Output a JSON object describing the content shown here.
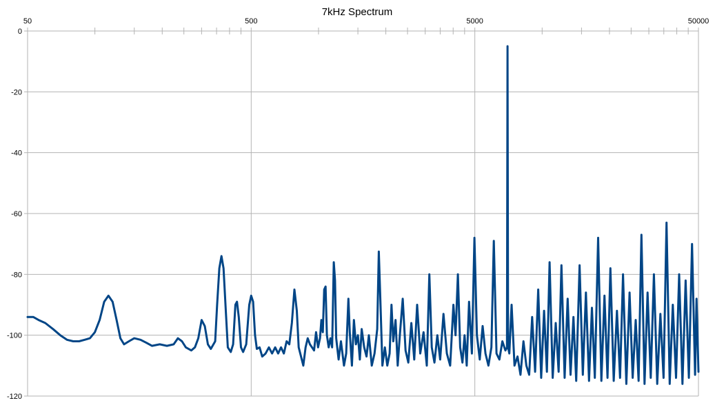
{
  "chart_data": {
    "type": "line",
    "title": "7kHz Spectrum",
    "xlabel": "",
    "ylabel": "",
    "x_scale": "log",
    "xlim": [
      50,
      50000
    ],
    "ylim": [
      -120,
      0
    ],
    "x_tick_labels": [
      "50",
      "500",
      "5000",
      "50000"
    ],
    "y_tick_labels": [
      "0",
      "-20",
      "-40",
      "-60",
      "-80",
      "-100",
      "-120"
    ],
    "grid": true,
    "legend": "none",
    "line_color": "#004586",
    "series": [
      {
        "points": [
          [
            50,
            -94
          ],
          [
            53,
            -94
          ],
          [
            56,
            -95
          ],
          [
            60,
            -96
          ],
          [
            65,
            -98
          ],
          [
            70,
            -100
          ],
          [
            75,
            -101.5
          ],
          [
            80,
            -102
          ],
          [
            85,
            -102
          ],
          [
            90,
            -101.5
          ],
          [
            95,
            -101
          ],
          [
            100,
            -99
          ],
          [
            105,
            -95
          ],
          [
            110,
            -89
          ],
          [
            115,
            -87
          ],
          [
            120,
            -89
          ],
          [
            125,
            -95
          ],
          [
            130,
            -101
          ],
          [
            135,
            -103
          ],
          [
            142,
            -102
          ],
          [
            150,
            -101
          ],
          [
            160,
            -101.5
          ],
          [
            170,
            -102.5
          ],
          [
            180,
            -103.5
          ],
          [
            195,
            -103
          ],
          [
            210,
            -103.5
          ],
          [
            225,
            -103
          ],
          [
            235,
            -101
          ],
          [
            245,
            -102
          ],
          [
            255,
            -104
          ],
          [
            270,
            -105
          ],
          [
            280,
            -104
          ],
          [
            290,
            -101
          ],
          [
            300,
            -95
          ],
          [
            310,
            -97
          ],
          [
            320,
            -103
          ],
          [
            330,
            -104.5
          ],
          [
            345,
            -102
          ],
          [
            352,
            -90
          ],
          [
            360,
            -78
          ],
          [
            368,
            -74
          ],
          [
            376,
            -78
          ],
          [
            385,
            -92
          ],
          [
            393,
            -104
          ],
          [
            405,
            -105.5
          ],
          [
            415,
            -103
          ],
          [
            425,
            -90
          ],
          [
            432,
            -89
          ],
          [
            440,
            -94
          ],
          [
            450,
            -104
          ],
          [
            460,
            -105.5
          ],
          [
            475,
            -103
          ],
          [
            490,
            -90
          ],
          [
            500,
            -87
          ],
          [
            510,
            -89
          ],
          [
            520,
            -100
          ],
          [
            530,
            -104.5
          ],
          [
            545,
            -104
          ],
          [
            560,
            -107
          ],
          [
            580,
            -106
          ],
          [
            600,
            -104
          ],
          [
            620,
            -106
          ],
          [
            640,
            -104
          ],
          [
            660,
            -106
          ],
          [
            680,
            -104
          ],
          [
            700,
            -106
          ],
          [
            720,
            -102
          ],
          [
            740,
            -103
          ],
          [
            760,
            -96
          ],
          [
            780,
            -85
          ],
          [
            800,
            -92
          ],
          [
            815,
            -104
          ],
          [
            835,
            -107
          ],
          [
            855,
            -110
          ],
          [
            875,
            -104
          ],
          [
            895,
            -101
          ],
          [
            915,
            -103
          ],
          [
            935,
            -104
          ],
          [
            955,
            -105
          ],
          [
            975,
            -99
          ],
          [
            995,
            -104
          ],
          [
            1015,
            -101
          ],
          [
            1030,
            -95
          ],
          [
            1045,
            -99
          ],
          [
            1060,
            -85
          ],
          [
            1075,
            -84
          ],
          [
            1090,
            -100
          ],
          [
            1110,
            -104
          ],
          [
            1130,
            -101
          ],
          [
            1150,
            -104
          ],
          [
            1170,
            -76
          ],
          [
            1185,
            -82
          ],
          [
            1200,
            -101
          ],
          [
            1230,
            -108
          ],
          [
            1260,
            -102
          ],
          [
            1280,
            -106
          ],
          [
            1300,
            -110
          ],
          [
            1330,
            -106
          ],
          [
            1360,
            -88
          ],
          [
            1380,
            -99
          ],
          [
            1410,
            -110
          ],
          [
            1440,
            -95
          ],
          [
            1470,
            -103
          ],
          [
            1500,
            -100
          ],
          [
            1530,
            -108
          ],
          [
            1560,
            -98
          ],
          [
            1600,
            -104
          ],
          [
            1640,
            -107
          ],
          [
            1680,
            -100
          ],
          [
            1730,
            -110
          ],
          [
            1780,
            -106
          ],
          [
            1830,
            -98
          ],
          [
            1860,
            -72.5
          ],
          [
            1890,
            -88
          ],
          [
            1930,
            -110
          ],
          [
            1980,
            -104
          ],
          [
            2030,
            -110
          ],
          [
            2080,
            -106
          ],
          [
            2120,
            -90
          ],
          [
            2160,
            -102
          ],
          [
            2210,
            -95
          ],
          [
            2260,
            -110
          ],
          [
            2310,
            -100
          ],
          [
            2380,
            -88
          ],
          [
            2450,
            -105
          ],
          [
            2520,
            -109
          ],
          [
            2600,
            -96
          ],
          [
            2680,
            -108
          ],
          [
            2760,
            -90
          ],
          [
            2850,
            -106
          ],
          [
            2950,
            -99
          ],
          [
            3050,
            -110
          ],
          [
            3130,
            -80
          ],
          [
            3210,
            -104
          ],
          [
            3300,
            -109
          ],
          [
            3400,
            -100
          ],
          [
            3500,
            -108
          ],
          [
            3620,
            -93
          ],
          [
            3750,
            -106
          ],
          [
            3880,
            -110
          ],
          [
            4010,
            -90
          ],
          [
            4100,
            -100
          ],
          [
            4200,
            -80
          ],
          [
            4300,
            -104
          ],
          [
            4400,
            -109
          ],
          [
            4500,
            -100
          ],
          [
            4600,
            -110
          ],
          [
            4710,
            -89
          ],
          [
            4850,
            -106
          ],
          [
            4980,
            -68
          ],
          [
            5110,
            -100
          ],
          [
            5260,
            -108
          ],
          [
            5420,
            -97
          ],
          [
            5580,
            -106
          ],
          [
            5750,
            -110
          ],
          [
            5930,
            -104
          ],
          [
            6080,
            -69
          ],
          [
            6250,
            -106
          ],
          [
            6440,
            -108
          ],
          [
            6640,
            -102
          ],
          [
            6850,
            -105
          ],
          [
            6960,
            -104
          ],
          [
            7000,
            -5
          ],
          [
            7040,
            -104
          ],
          [
            7130,
            -106
          ],
          [
            7300,
            -90
          ],
          [
            7520,
            -110
          ],
          [
            7760,
            -107
          ],
          [
            8000,
            -113
          ],
          [
            8250,
            -102
          ],
          [
            8500,
            -110
          ],
          [
            8750,
            -113
          ],
          [
            9020,
            -94
          ],
          [
            9300,
            -112
          ],
          [
            9600,
            -85
          ],
          [
            9900,
            -114
          ],
          [
            10200,
            -92
          ],
          [
            10500,
            -112
          ],
          [
            10800,
            -76
          ],
          [
            11150,
            -114
          ],
          [
            11500,
            -96
          ],
          [
            11850,
            -112
          ],
          [
            12200,
            -77
          ],
          [
            12600,
            -114
          ],
          [
            13000,
            -88
          ],
          [
            13400,
            -113
          ],
          [
            13800,
            -94
          ],
          [
            14200,
            -115
          ],
          [
            14700,
            -77
          ],
          [
            15200,
            -113
          ],
          [
            15700,
            -86
          ],
          [
            16200,
            -115
          ],
          [
            16700,
            -91
          ],
          [
            17200,
            -114
          ],
          [
            17800,
            -68
          ],
          [
            18400,
            -115
          ],
          [
            19000,
            -87
          ],
          [
            19600,
            -114
          ],
          [
            20200,
            -78
          ],
          [
            20900,
            -115
          ],
          [
            21600,
            -92
          ],
          [
            22300,
            -114
          ],
          [
            23000,
            -80
          ],
          [
            23800,
            -116
          ],
          [
            24600,
            -86
          ],
          [
            25400,
            -114
          ],
          [
            26200,
            -95
          ],
          [
            27000,
            -115
          ],
          [
            27800,
            -67
          ],
          [
            28700,
            -116
          ],
          [
            29600,
            -86
          ],
          [
            30600,
            -114
          ],
          [
            31600,
            -80
          ],
          [
            32700,
            -116
          ],
          [
            33800,
            -93
          ],
          [
            34900,
            -114
          ],
          [
            36000,
            -63
          ],
          [
            37200,
            -116
          ],
          [
            38400,
            -90
          ],
          [
            39700,
            -114
          ],
          [
            41000,
            -80
          ],
          [
            42400,
            -116
          ],
          [
            43800,
            -82
          ],
          [
            45300,
            -114
          ],
          [
            46800,
            -70
          ],
          [
            48300,
            -113
          ],
          [
            49000,
            -88
          ],
          [
            50000,
            -112
          ]
        ]
      }
    ]
  }
}
